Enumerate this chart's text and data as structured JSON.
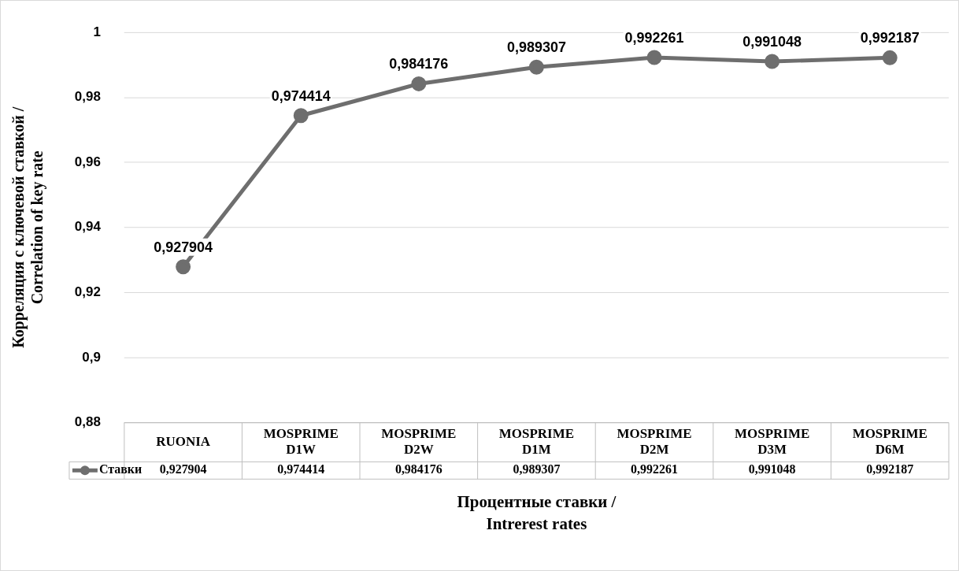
{
  "chart_data": {
    "type": "line",
    "ylabel": "Корреляция с ключевой ставкой / Correlation of key rate",
    "xlabel": "Процентные ставки / Intrerest rates",
    "categories": [
      "RUONIA",
      "MOSPRIME D1W",
      "MOSPRIME D2W",
      "MOSPRIME D1M",
      "MOSPRIME D2M",
      "MOSPRIME D3M",
      "MOSPRIME D6M"
    ],
    "series": [
      {
        "name": "Ставки",
        "color": "#6e6e6e",
        "values": [
          0.927904,
          0.974414,
          0.984176,
          0.989307,
          0.992261,
          0.991048,
          0.992187
        ],
        "value_labels": [
          "0,927904",
          "0,974414",
          "0,984176",
          "0,989307",
          "0,992261",
          "0,991048",
          "0,992187"
        ]
      }
    ],
    "ylim": [
      0.88,
      1
    ],
    "yticks": [
      {
        "value": 0.88,
        "label": "0,88"
      },
      {
        "value": 0.9,
        "label": "0,9"
      },
      {
        "value": 0.92,
        "label": "0,92"
      },
      {
        "value": 0.94,
        "label": "0,94"
      },
      {
        "value": 0.96,
        "label": "0,96"
      },
      {
        "value": 0.98,
        "label": "0,98"
      },
      {
        "value": 1,
        "label": "1"
      }
    ],
    "grid": "y",
    "legend": "bottom",
    "marker": "circle",
    "line_style": "solid"
  }
}
